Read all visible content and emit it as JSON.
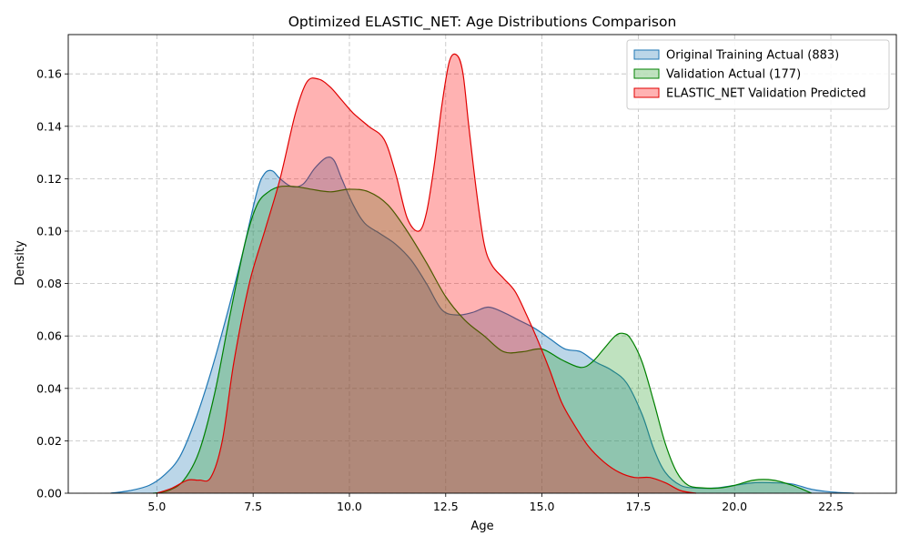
{
  "chart_data": {
    "type": "area",
    "title": "Optimized ELASTIC_NET: Age Distributions Comparison",
    "xlabel": "Age",
    "ylabel": "Density",
    "xlim": [
      2.7,
      24.2
    ],
    "ylim": [
      0,
      0.175
    ],
    "xticks": [
      5.0,
      7.5,
      10.0,
      12.5,
      15.0,
      17.5,
      20.0,
      22.5
    ],
    "xtick_labels": [
      "5.0",
      "7.5",
      "10.0",
      "12.5",
      "15.0",
      "17.5",
      "20.0",
      "22.5"
    ],
    "yticks": [
      0,
      0.02,
      0.04,
      0.06,
      0.08,
      0.1,
      0.12,
      0.14,
      0.16
    ],
    "ytick_labels": [
      "0.00",
      "0.02",
      "0.04",
      "0.06",
      "0.08",
      "0.10",
      "0.12",
      "0.14",
      "0.16"
    ],
    "grid": true,
    "legend_position": "top-right",
    "series": [
      {
        "name": "Original Training Actual (883)",
        "color": "#1f77b4",
        "fill_color": "#1f77b4",
        "x": [
          3.8,
          4.3,
          4.8,
          5.2,
          5.6,
          6.0,
          6.4,
          6.8,
          7.2,
          7.6,
          7.8,
          8.0,
          8.2,
          8.5,
          8.8,
          9.1,
          9.4,
          9.6,
          9.8,
          10.1,
          10.4,
          10.8,
          11.2,
          11.6,
          12.0,
          12.4,
          12.8,
          13.2,
          13.6,
          14.0,
          14.4,
          14.8,
          15.2,
          15.6,
          16.0,
          16.4,
          16.8,
          17.2,
          17.6,
          17.9,
          18.2,
          18.6,
          19.0,
          19.5,
          20.0,
          20.5,
          21.0,
          21.5,
          22.0,
          22.5,
          23.1
        ],
        "y": [
          0.0,
          0.001,
          0.003,
          0.007,
          0.014,
          0.028,
          0.046,
          0.067,
          0.09,
          0.115,
          0.122,
          0.123,
          0.12,
          0.117,
          0.118,
          0.124,
          0.128,
          0.127,
          0.12,
          0.11,
          0.103,
          0.099,
          0.095,
          0.089,
          0.08,
          0.07,
          0.068,
          0.069,
          0.071,
          0.069,
          0.066,
          0.063,
          0.059,
          0.055,
          0.054,
          0.05,
          0.047,
          0.042,
          0.03,
          0.017,
          0.008,
          0.003,
          0.002,
          0.002,
          0.003,
          0.004,
          0.004,
          0.0035,
          0.0015,
          0.0005,
          0.0
        ]
      },
      {
        "name": "Validation Actual (177)",
        "color": "#008000",
        "fill_color": "#2ca02c",
        "x": [
          4.9,
          5.3,
          5.7,
          6.1,
          6.5,
          6.9,
          7.3,
          7.6,
          7.9,
          8.2,
          8.6,
          9.0,
          9.5,
          10.0,
          10.5,
          11.0,
          11.5,
          12.0,
          12.5,
          13.0,
          13.5,
          14.0,
          14.5,
          15.0,
          15.5,
          16.0,
          16.3,
          16.6,
          16.9,
          17.1,
          17.3,
          17.6,
          17.9,
          18.2,
          18.5,
          18.8,
          19.2,
          19.6,
          20.0,
          20.5,
          21.0,
          21.5,
          22.0
        ],
        "y": [
          0.0,
          0.001,
          0.005,
          0.016,
          0.038,
          0.068,
          0.096,
          0.11,
          0.115,
          0.117,
          0.117,
          0.116,
          0.115,
          0.116,
          0.115,
          0.11,
          0.1,
          0.088,
          0.075,
          0.066,
          0.06,
          0.054,
          0.054,
          0.055,
          0.051,
          0.048,
          0.05,
          0.055,
          0.06,
          0.061,
          0.059,
          0.05,
          0.035,
          0.019,
          0.008,
          0.003,
          0.002,
          0.002,
          0.003,
          0.005,
          0.005,
          0.003,
          0.0
        ]
      },
      {
        "name": "ELASTIC_NET Validation Predicted",
        "color": "#e00000",
        "fill_color": "#ff0000",
        "x": [
          5.0,
          5.4,
          5.8,
          6.1,
          6.4,
          6.7,
          7.0,
          7.4,
          7.8,
          8.2,
          8.6,
          8.9,
          9.2,
          9.5,
          9.8,
          10.1,
          10.5,
          10.9,
          11.2,
          11.5,
          11.8,
          12.0,
          12.2,
          12.4,
          12.6,
          12.8,
          12.95,
          13.1,
          13.3,
          13.5,
          13.7,
          14.0,
          14.3,
          14.6,
          14.9,
          15.2,
          15.5,
          15.8,
          16.2,
          16.6,
          17.0,
          17.4,
          17.8,
          18.2,
          18.6,
          19.0
        ],
        "y": [
          0.0,
          0.002,
          0.005,
          0.005,
          0.006,
          0.02,
          0.05,
          0.08,
          0.1,
          0.12,
          0.145,
          0.157,
          0.158,
          0.155,
          0.15,
          0.145,
          0.14,
          0.135,
          0.122,
          0.105,
          0.1,
          0.107,
          0.125,
          0.148,
          0.165,
          0.167,
          0.16,
          0.14,
          0.115,
          0.095,
          0.087,
          0.082,
          0.077,
          0.068,
          0.058,
          0.047,
          0.035,
          0.027,
          0.018,
          0.012,
          0.008,
          0.006,
          0.006,
          0.004,
          0.001,
          0.0
        ]
      }
    ]
  }
}
